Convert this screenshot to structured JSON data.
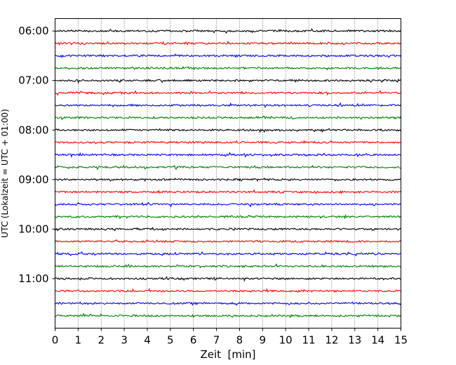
{
  "chart_data": {
    "type": "line",
    "title": "",
    "xlabel": "Zeit  [min]",
    "ylabel": "UTC (Lokalzeit = UTC + 01:00)",
    "xlim": [
      0,
      15
    ],
    "x_ticks": [
      0,
      1,
      2,
      3,
      4,
      5,
      6,
      7,
      8,
      9,
      10,
      11,
      12,
      13,
      14,
      15
    ],
    "x_tick_labels": [
      "0",
      "1",
      "2",
      "3",
      "4",
      "5",
      "6",
      "7",
      "8",
      "9",
      "10",
      "11",
      "12",
      "13",
      "14",
      "15"
    ],
    "y_ticks": [
      "06:00",
      "07:00",
      "08:00",
      "09:00",
      "10:00",
      "11:00"
    ],
    "ylim_hours": [
      "05:45",
      "12:00"
    ],
    "grid": "vertical dotted at each minute",
    "trace_interval_min": 15,
    "trace_start": "06:00",
    "trace_count": 24,
    "trace_colors": [
      "#000000",
      "#ff0000",
      "#0000ff",
      "#008000"
    ],
    "traces": [
      {
        "start": "06:00",
        "color": "#000000"
      },
      {
        "start": "06:15",
        "color": "#ff0000"
      },
      {
        "start": "06:30",
        "color": "#0000ff"
      },
      {
        "start": "06:45",
        "color": "#008000"
      },
      {
        "start": "07:00",
        "color": "#000000"
      },
      {
        "start": "07:15",
        "color": "#ff0000"
      },
      {
        "start": "07:30",
        "color": "#0000ff"
      },
      {
        "start": "07:45",
        "color": "#008000"
      },
      {
        "start": "08:00",
        "color": "#000000"
      },
      {
        "start": "08:15",
        "color": "#ff0000"
      },
      {
        "start": "08:30",
        "color": "#0000ff"
      },
      {
        "start": "08:45",
        "color": "#008000"
      },
      {
        "start": "09:00",
        "color": "#000000"
      },
      {
        "start": "09:15",
        "color": "#ff0000"
      },
      {
        "start": "09:30",
        "color": "#0000ff"
      },
      {
        "start": "09:45",
        "color": "#008000"
      },
      {
        "start": "10:00",
        "color": "#000000"
      },
      {
        "start": "10:15",
        "color": "#ff0000"
      },
      {
        "start": "10:30",
        "color": "#0000ff"
      },
      {
        "start": "10:45",
        "color": "#008000"
      },
      {
        "start": "11:00",
        "color": "#000000"
      },
      {
        "start": "11:15",
        "color": "#ff0000"
      },
      {
        "start": "11:30",
        "color": "#0000ff"
      },
      {
        "start": "11:45",
        "color": "#008000"
      }
    ]
  }
}
